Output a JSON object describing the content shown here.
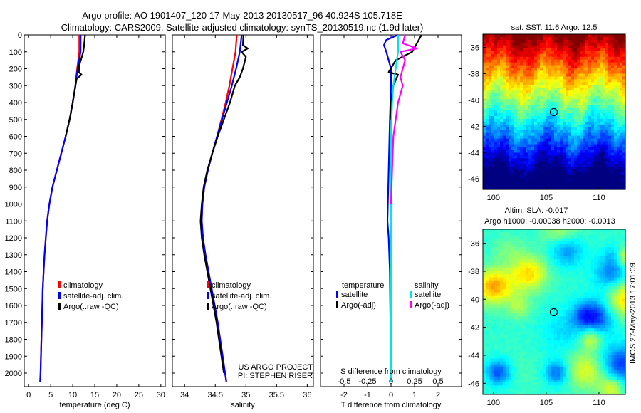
{
  "header": {
    "title_line1": "Argo profile: AO 1901407_120 17-May-2013 20130517_96 40.924S 105.718E",
    "title_line2": "Climatology: CARS2009. Satellite-adjusted climatology: synTS_20130519.nc (1.9d later)"
  },
  "side_text": "IMOS 27-May-2013 17:01:09",
  "colors": {
    "climatology": "#ff0000",
    "satellite": "#0000ff",
    "argo": "#000000",
    "sal_satellite": "#00e5e5",
    "sal_argo": "#ff00ff"
  },
  "chart_data": [
    {
      "type": "line",
      "id": "temperature",
      "xlabel": "temperature (deg C)",
      "ylabel": "",
      "xlim": [
        -1,
        31
      ],
      "ylim": [
        2080,
        0
      ],
      "xticks": [
        0,
        5,
        10,
        15,
        20,
        25,
        30
      ],
      "yticks": [
        0,
        100,
        200,
        300,
        400,
        500,
        600,
        700,
        800,
        900,
        1000,
        1100,
        1200,
        1300,
        1400,
        1500,
        1600,
        1700,
        1800,
        1900,
        2000
      ],
      "legend": [
        "climatology",
        "satellite-adj. clim.",
        "Argo(..raw -QC)"
      ],
      "legend_colors": [
        "#ff0000",
        "#0000ff",
        "#000000"
      ],
      "series": [
        {
          "name": "climatology",
          "color": "#ff0000",
          "points": [
            [
              11.5,
              0
            ],
            [
              11.5,
              100
            ],
            [
              11.0,
              200
            ],
            [
              10.6,
              300
            ],
            [
              10.0,
              400
            ],
            [
              9.3,
              500
            ],
            [
              8.4,
              600
            ],
            [
              7.4,
              700
            ],
            [
              6.4,
              800
            ],
            [
              5.4,
              900
            ],
            [
              4.7,
              1000
            ],
            [
              4.2,
              1100
            ],
            [
              3.9,
              1200
            ],
            [
              3.6,
              1300
            ],
            [
              3.4,
              1400
            ],
            [
              3.2,
              1500
            ],
            [
              3.1,
              1600
            ],
            [
              3.0,
              1700
            ],
            [
              2.9,
              1800
            ],
            [
              2.8,
              1900
            ],
            [
              2.7,
              2000
            ],
            [
              2.6,
              2050
            ]
          ]
        },
        {
          "name": "satellite-adj. clim.",
          "color": "#0000ff",
          "points": [
            [
              11.8,
              0
            ],
            [
              11.8,
              100
            ],
            [
              11.1,
              200
            ],
            [
              10.6,
              300
            ],
            [
              10.0,
              400
            ],
            [
              9.3,
              500
            ],
            [
              8.4,
              600
            ],
            [
              7.4,
              700
            ],
            [
              6.4,
              800
            ],
            [
              5.4,
              900
            ],
            [
              4.7,
              1000
            ],
            [
              4.2,
              1100
            ],
            [
              3.9,
              1200
            ],
            [
              3.6,
              1300
            ],
            [
              3.4,
              1400
            ],
            [
              3.2,
              1500
            ],
            [
              3.1,
              1600
            ],
            [
              3.0,
              1700
            ],
            [
              2.9,
              1800
            ],
            [
              2.8,
              1900
            ],
            [
              2.7,
              2000
            ],
            [
              2.6,
              2050
            ]
          ]
        },
        {
          "name": "Argo(..raw -QC)",
          "color": "#000000",
          "points": [
            [
              12.8,
              0
            ],
            [
              12.6,
              60
            ],
            [
              12.4,
              100
            ],
            [
              11.5,
              180
            ],
            [
              11.4,
              220
            ],
            [
              12.0,
              235
            ],
            [
              10.9,
              260
            ],
            [
              10.5,
              320
            ],
            [
              10.0,
              400
            ],
            [
              9.3,
              500
            ],
            [
              8.4,
              600
            ]
          ]
        }
      ]
    },
    {
      "type": "line",
      "id": "salinity",
      "xlabel": "salinity",
      "ylabel": "",
      "xlim": [
        33.8,
        36.1
      ],
      "ylim": [
        2080,
        0
      ],
      "xticks": [
        34,
        34.5,
        35,
        35.5,
        36
      ],
      "yticks": [
        0,
        100,
        200,
        300,
        400,
        500,
        600,
        700,
        800,
        900,
        1000,
        1100,
        1200,
        1300,
        1400,
        1500,
        1600,
        1700,
        1800,
        1900,
        2000
      ],
      "legend": [
        "climatology",
        "satellite-adj. clim.",
        "Argo(..raw -QC)"
      ],
      "legend_colors": [
        "#ff0000",
        "#0000ff",
        "#000000"
      ],
      "annotation": [
        "US ARGO PROJECT",
        "PI: STEPHEN RISER"
      ],
      "series": [
        {
          "name": "climatology",
          "color": "#ff0000",
          "points": [
            [
              34.85,
              0
            ],
            [
              34.83,
              100
            ],
            [
              34.78,
              200
            ],
            [
              34.73,
              300
            ],
            [
              34.67,
              400
            ],
            [
              34.6,
              500
            ],
            [
              34.53,
              600
            ],
            [
              34.45,
              700
            ],
            [
              34.38,
              800
            ],
            [
              34.32,
              900
            ],
            [
              34.29,
              1000
            ],
            [
              34.28,
              1100
            ],
            [
              34.3,
              1200
            ],
            [
              34.34,
              1300
            ],
            [
              34.39,
              1400
            ],
            [
              34.44,
              1500
            ],
            [
              34.49,
              1600
            ],
            [
              34.54,
              1700
            ],
            [
              34.58,
              1800
            ],
            [
              34.62,
              1900
            ],
            [
              34.66,
              2000
            ],
            [
              34.68,
              2050
            ]
          ]
        },
        {
          "name": "satellite-adj. clim.",
          "color": "#0000ff",
          "points": [
            [
              34.93,
              0
            ],
            [
              34.9,
              100
            ],
            [
              34.84,
              200
            ],
            [
              34.77,
              300
            ],
            [
              34.69,
              400
            ],
            [
              34.61,
              500
            ],
            [
              34.53,
              600
            ],
            [
              34.45,
              700
            ],
            [
              34.38,
              800
            ],
            [
              34.32,
              900
            ],
            [
              34.29,
              1000
            ],
            [
              34.28,
              1100
            ],
            [
              34.3,
              1200
            ],
            [
              34.34,
              1300
            ],
            [
              34.39,
              1400
            ],
            [
              34.44,
              1500
            ],
            [
              34.49,
              1600
            ],
            [
              34.54,
              1700
            ],
            [
              34.58,
              1800
            ],
            [
              34.62,
              1900
            ],
            [
              34.66,
              2000
            ],
            [
              34.68,
              2050
            ]
          ]
        },
        {
          "name": "Argo(..raw -QC)",
          "color": "#000000",
          "points": [
            [
              34.96,
              0
            ],
            [
              34.95,
              60
            ],
            [
              35.03,
              80
            ],
            [
              34.93,
              100
            ],
            [
              35.0,
              130
            ],
            [
              34.95,
              200
            ],
            [
              34.9,
              250
            ],
            [
              34.82,
              300
            ],
            [
              34.74,
              400
            ],
            [
              34.64,
              500
            ],
            [
              34.54,
              600
            ],
            [
              34.45,
              700
            ],
            [
              34.37,
              800
            ],
            [
              34.31,
              900
            ],
            [
              34.28,
              1000
            ],
            [
              34.26,
              1100
            ],
            [
              34.28,
              1200
            ],
            [
              34.32,
              1300
            ],
            [
              34.37,
              1400
            ],
            [
              34.42,
              1500
            ],
            [
              34.47,
              1600
            ],
            [
              34.52,
              1700
            ],
            [
              34.56,
              1800
            ],
            [
              34.6,
              1900
            ],
            [
              34.64,
              2000
            ]
          ]
        }
      ]
    },
    {
      "type": "line",
      "id": "difference",
      "xlabel": "T difference from climatology",
      "xlabel_top": "S difference from climatology",
      "ylabel": "",
      "xlim": [
        -3,
        3
      ],
      "ylim": [
        2080,
        0
      ],
      "xticks": [
        -2,
        -1,
        0,
        1,
        2
      ],
      "xticks_top_labels": [
        "-0.5",
        "-0.25",
        "0",
        "0.25",
        "0.5"
      ],
      "xticks_top_pos": [
        -2,
        -1,
        0,
        1,
        2
      ],
      "yticks": [
        0,
        100,
        200,
        300,
        400,
        500,
        600,
        700,
        800,
        900,
        1000,
        1100,
        1200,
        1300,
        1400,
        1500,
        1600,
        1700,
        1800,
        1900,
        2000
      ],
      "legend_headers": [
        "temperature",
        "salinity"
      ],
      "legend": [
        "satellite",
        "Argo(-adj)",
        "satellite",
        "Argo(-adj)"
      ],
      "legend_colors": [
        "#0000ff",
        "#000000",
        "#00e5e5",
        "#ff00ff"
      ],
      "series": [
        {
          "name": "temperature satellite",
          "color": "#0000ff",
          "points": [
            [
              0.3,
              0
            ],
            [
              -0.2,
              30
            ],
            [
              -0.3,
              60
            ],
            [
              -0.2,
              100
            ],
            [
              -0.1,
              150
            ],
            [
              0,
              200
            ],
            [
              0,
              300
            ],
            [
              -0.05,
              500
            ],
            [
              -0.1,
              800
            ],
            [
              -0.15,
              1100
            ],
            [
              -0.1,
              1200
            ],
            [
              -0.05,
              1400
            ],
            [
              0,
              2050
            ]
          ]
        },
        {
          "name": "temperature Argo(-adj)",
          "color": "#000000",
          "points": [
            [
              1.3,
              0
            ],
            [
              1.1,
              50
            ],
            [
              0.9,
              100
            ],
            [
              0.2,
              150
            ],
            [
              -0.1,
              220
            ],
            [
              0.3,
              235
            ],
            [
              0.1,
              300
            ],
            [
              0,
              400
            ],
            [
              0,
              500
            ]
          ]
        },
        {
          "name": "salinity satellite",
          "color": "#00e5e5",
          "points": [
            [
              0.3,
              0
            ],
            [
              0.3,
              100
            ],
            [
              0.2,
              200
            ],
            [
              0.1,
              300
            ],
            [
              0.05,
              400
            ],
            [
              0,
              600
            ],
            [
              0,
              2050
            ]
          ]
        },
        {
          "name": "salinity Argo(-adj)",
          "color": "#ff00ff",
          "points": [
            [
              0.6,
              0
            ],
            [
              0.5,
              50
            ],
            [
              1.1,
              80
            ],
            [
              0.4,
              100
            ],
            [
              0.6,
              150
            ],
            [
              0.4,
              250
            ],
            [
              0.5,
              300
            ],
            [
              0.3,
              400
            ],
            [
              0.2,
              500
            ],
            [
              0.1,
              600
            ],
            [
              0.05,
              800
            ],
            [
              0,
              1000
            ]
          ]
        }
      ]
    },
    {
      "type": "heatmap",
      "id": "sst_map",
      "title": "sat. SST: 11.6 Argo: 12.5",
      "xlim": [
        99,
        112.5
      ],
      "ylim": [
        -46.8,
        -35
      ],
      "xticks": [
        100,
        105,
        110
      ],
      "yticks": [
        -36,
        -38,
        -40,
        -42,
        -44,
        -46
      ],
      "marker": [
        105.718,
        -40.924
      ]
    },
    {
      "type": "heatmap",
      "id": "sla_map",
      "title": "Altim. SLA: -0.017",
      "subtitle": "Argo h1000: -0.00038 h2000: -0.0013",
      "xlim": [
        99,
        112.5
      ],
      "ylim": [
        -46.8,
        -35
      ],
      "xticks": [
        100,
        105,
        110
      ],
      "yticks": [
        -36,
        -38,
        -40,
        -42,
        -44,
        -46
      ],
      "marker": [
        105.718,
        -40.924
      ]
    }
  ]
}
